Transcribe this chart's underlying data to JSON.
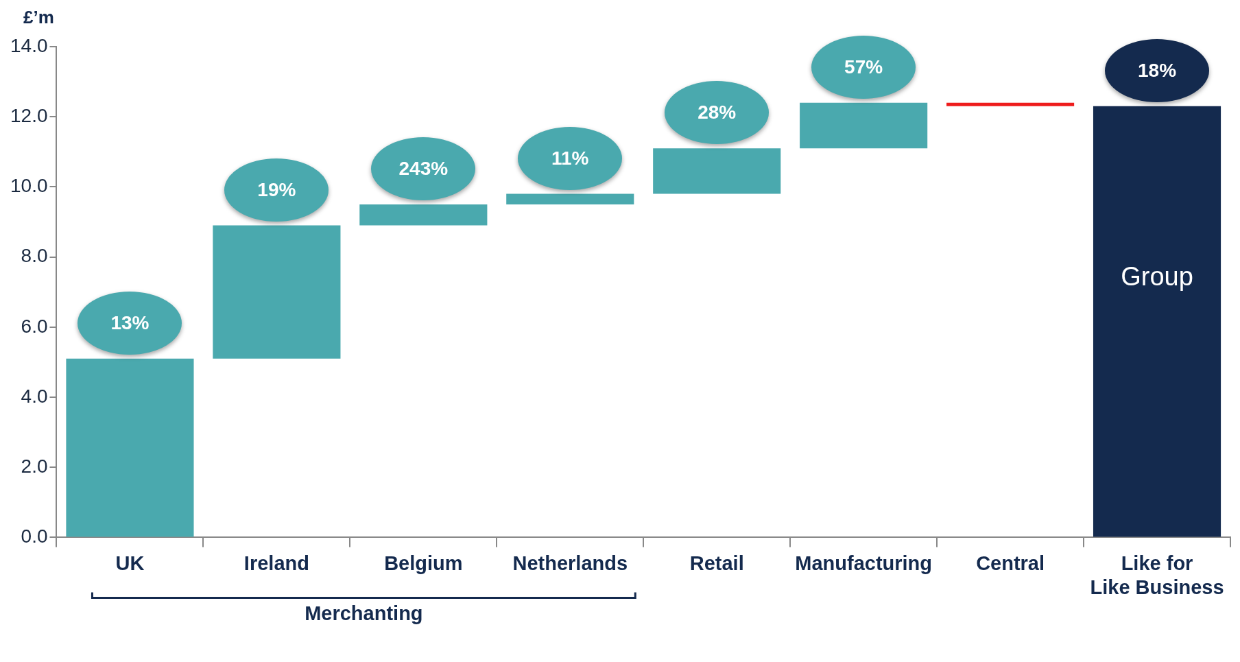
{
  "chart_data": {
    "type": "bar",
    "ylabel": "£’m",
    "categories": [
      "UK",
      "Ireland",
      "Belgium",
      "Netherlands",
      "Retail",
      "Manufacturing",
      "Central",
      "Like for Like Business"
    ],
    "base": [
      0,
      5.1,
      8.9,
      9.5,
      9.8,
      11.1,
      12.4,
      0
    ],
    "values": [
      5.1,
      3.8,
      0.6,
      0.3,
      1.3,
      1.3,
      -0.1,
      12.3
    ],
    "colors": [
      "#4aa9ae",
      "#4aa9ae",
      "#4aa9ae",
      "#4aa9ae",
      "#4aa9ae",
      "#4aa9ae",
      "#ee1c1c",
      "#142a4e"
    ],
    "ylim": [
      0,
      14
    ],
    "yticks": [
      {
        "value": 0,
        "label": "0.0"
      },
      {
        "value": 2,
        "label": "2.0"
      },
      {
        "value": 4,
        "label": "4.0"
      },
      {
        "value": 6,
        "label": "6.0"
      },
      {
        "value": 8,
        "label": "8.0"
      },
      {
        "value": 10,
        "label": "10.0"
      },
      {
        "value": 12,
        "label": "12.0"
      },
      {
        "value": 14,
        "label": "14.0"
      }
    ],
    "annotations": [
      "Merchanting",
      "Group",
      {
        "text": "13%",
        "x": "UK",
        "y": 5.1
      },
      {
        "text": "19%",
        "x": "Ireland",
        "y": 8.9
      },
      {
        "text": "243%",
        "x": "Belgium",
        "y": 9.5
      },
      {
        "text": "11%",
        "x": "Netherlands",
        "y": 9.8
      },
      {
        "text": "28%",
        "x": "Retail",
        "y": 11.1
      },
      {
        "text": "57%",
        "x": "Manufacturing",
        "y": 12.4
      },
      {
        "text": "18%",
        "x": "Like for Like Business",
        "y": 12.3
      }
    ],
    "grid": false,
    "legend": false
  }
}
